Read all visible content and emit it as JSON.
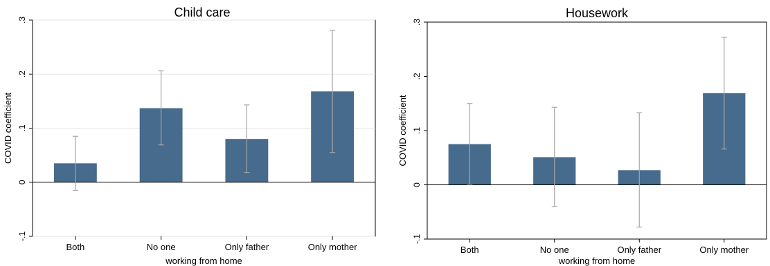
{
  "chart_data": [
    {
      "type": "bar",
      "title": "Child care",
      "xlabel": "working from home",
      "ylabel": "COVID coefficient",
      "categories": [
        "Both",
        "No one",
        "Only father",
        "Only mother"
      ],
      "values": [
        0.035,
        0.137,
        0.08,
        0.168
      ],
      "ci_low": [
        -0.015,
        0.069,
        0.018,
        0.055
      ],
      "ci_high": [
        0.085,
        0.206,
        0.143,
        0.281
      ],
      "ylim": [
        -0.1,
        0.3
      ],
      "yticks": [
        -0.1,
        0,
        0.1,
        0.2,
        0.3
      ],
      "ytick_labels": [
        "-.1",
        "0",
        ".1",
        ".2",
        ".3"
      ],
      "grid": true,
      "bar_color": "#466b8c",
      "errorbar_color": "#a6a6a6"
    },
    {
      "type": "bar",
      "title": "Housework",
      "xlabel": "working from home",
      "ylabel": "COVID coefficient",
      "categories": [
        "Both",
        "No one",
        "Only father",
        "Only mother"
      ],
      "values": [
        0.075,
        0.051,
        0.027,
        0.169
      ],
      "ci_low": [
        0.001,
        -0.04,
        -0.078,
        0.066
      ],
      "ci_high": [
        0.15,
        0.143,
        0.133,
        0.272
      ],
      "ylim": [
        -0.1,
        0.3
      ],
      "yticks": [
        -0.1,
        0,
        0.1,
        0.2,
        0.3
      ],
      "ytick_labels": [
        "-.1",
        "0",
        ".1",
        ".2",
        ".3"
      ],
      "grid": false,
      "bar_color": "#466b8c",
      "errorbar_color": "#a6a6a6"
    }
  ]
}
